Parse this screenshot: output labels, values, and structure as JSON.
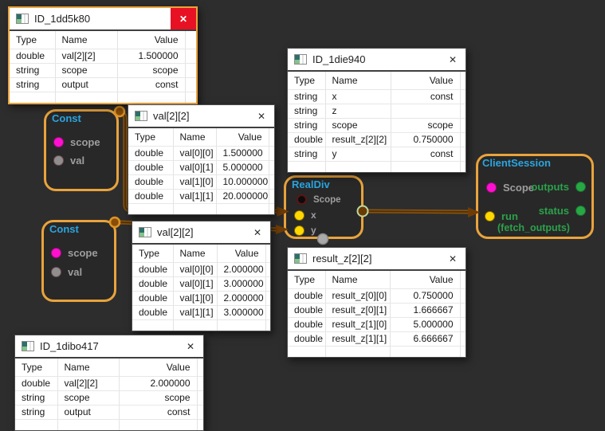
{
  "canvas": {
    "background": "#2d2d2d"
  },
  "colors": {
    "node_border": "#e9a33c",
    "node_title": "#2aa5e0",
    "port_magenta": "#ff10cf",
    "port_gray": "#8f8f8f",
    "port_yellow": "#ffd800",
    "port_green": "#28a745",
    "label_gray": "#9e9e9e",
    "label_green": "#2ba14a",
    "wire": "#8a5510",
    "active_close_bg": "#e81123"
  },
  "icons": {
    "close": "✕",
    "table_icon": "table-icon"
  },
  "windows": [
    {
      "title": "ID_1dd5k80",
      "active": true,
      "columns": [
        "Type",
        "Name",
        "Value"
      ],
      "rows": [
        [
          "double",
          "val[2][2]",
          "1.500000"
        ],
        [
          "string",
          "scope",
          "scope"
        ],
        [
          "string",
          "output",
          "const"
        ]
      ]
    },
    {
      "title": "val[2][2]",
      "active": false,
      "columns": [
        "Type",
        "Name",
        "Value"
      ],
      "rows": [
        [
          "double",
          "val[0][0]",
          "1.500000"
        ],
        [
          "double",
          "val[0][1]",
          "5.000000"
        ],
        [
          "double",
          "val[1][0]",
          "10.000000"
        ],
        [
          "double",
          "val[1][1]",
          "20.000000"
        ]
      ]
    },
    {
      "title": "ID_1die940",
      "active": false,
      "columns": [
        "Type",
        "Name",
        "Value"
      ],
      "rows": [
        [
          "string",
          "x",
          "const"
        ],
        [
          "string",
          "z",
          ""
        ],
        [
          "string",
          "scope",
          "scope"
        ],
        [
          "double",
          "result_z[2][2]",
          "0.750000"
        ],
        [
          "string",
          "y",
          "const"
        ]
      ]
    },
    {
      "title": "val[2][2]",
      "active": false,
      "columns": [
        "Type",
        "Name",
        "Value"
      ],
      "rows": [
        [
          "double",
          "val[0][0]",
          "2.000000"
        ],
        [
          "double",
          "val[0][1]",
          "3.000000"
        ],
        [
          "double",
          "val[1][0]",
          "2.000000"
        ],
        [
          "double",
          "val[1][1]",
          "3.000000"
        ]
      ]
    },
    {
      "title": "result_z[2][2]",
      "active": false,
      "columns": [
        "Type",
        "Name",
        "Value"
      ],
      "rows": [
        [
          "double",
          "result_z[0][0]",
          "0.750000"
        ],
        [
          "double",
          "result_z[0][1]",
          "1.666667"
        ],
        [
          "double",
          "result_z[1][0]",
          "5.000000"
        ],
        [
          "double",
          "result_z[1][1]",
          "6.666667"
        ]
      ]
    },
    {
      "title": "ID_1dibo417",
      "active": false,
      "columns": [
        "Type",
        "Name",
        "Value"
      ],
      "rows": [
        [
          "double",
          "val[2][2]",
          "2.000000"
        ],
        [
          "string",
          "scope",
          "scope"
        ],
        [
          "string",
          "output",
          "const"
        ]
      ]
    }
  ],
  "nodes": [
    {
      "title": "Const",
      "ports": [
        {
          "label": "scope",
          "color": "#ff10cf"
        },
        {
          "label": "val",
          "color": "#8f8f8f"
        }
      ]
    },
    {
      "title": "Const",
      "ports": [
        {
          "label": "scope",
          "color": "#ff10cf"
        },
        {
          "label": "val",
          "color": "#8f8f8f"
        }
      ]
    },
    {
      "title": "RealDiv",
      "ports": [
        {
          "label": "Scope",
          "color": "#0c0c0c"
        },
        {
          "label": "x",
          "color": "#ffd800"
        },
        {
          "label": "y",
          "color": "#ffd800"
        }
      ]
    },
    {
      "title": "ClientSession",
      "ports": [
        {
          "label": "Scope",
          "color": "#ff10cf"
        },
        {
          "label": "run",
          "sub": "(fetch_outputs)",
          "color": "#ffd800"
        }
      ],
      "ports_right": [
        {
          "label": "outputs",
          "color": "#28a745"
        },
        {
          "label": "status",
          "color": "#28a745"
        }
      ]
    }
  ]
}
